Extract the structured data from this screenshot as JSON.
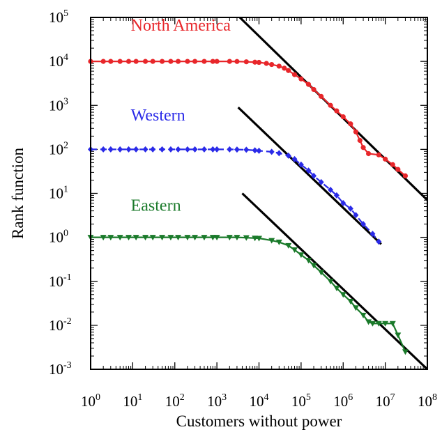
{
  "chart_data": {
    "type": "line",
    "xlabel": "Customers without power",
    "ylabel": "Rank function",
    "x_scale": "log",
    "y_scale": "log",
    "xlim": [
      1,
      100000000
    ],
    "ylim": [
      0.001,
      100000
    ],
    "x_ticks": [
      {
        "base": "10",
        "exp": "0",
        "value": 1
      },
      {
        "base": "10",
        "exp": "1",
        "value": 10
      },
      {
        "base": "10",
        "exp": "2",
        "value": 100
      },
      {
        "base": "10",
        "exp": "3",
        "value": 1000
      },
      {
        "base": "10",
        "exp": "4",
        "value": 10000
      },
      {
        "base": "10",
        "exp": "5",
        "value": 100000
      },
      {
        "base": "10",
        "exp": "6",
        "value": 1000000
      },
      {
        "base": "10",
        "exp": "7",
        "value": 10000000
      },
      {
        "base": "10",
        "exp": "8",
        "value": 100000000
      }
    ],
    "y_ticks": [
      {
        "base": "10",
        "exp": "-3",
        "value": 0.001
      },
      {
        "base": "10",
        "exp": "-2",
        "value": 0.01
      },
      {
        "base": "10",
        "exp": "-1",
        "value": 0.1
      },
      {
        "base": "10",
        "exp": "0",
        "value": 1
      },
      {
        "base": "10",
        "exp": "1",
        "value": 10
      },
      {
        "base": "10",
        "exp": "2",
        "value": 100
      },
      {
        "base": "10",
        "exp": "3",
        "value": 1000
      },
      {
        "base": "10",
        "exp": "4",
        "value": 10000
      },
      {
        "base": "10",
        "exp": "5",
        "value": 100000
      }
    ],
    "series": [
      {
        "name": "North America",
        "color": "#e8262a",
        "marker": "circle",
        "line_style": "solid",
        "x": [
          1,
          2,
          3,
          5,
          8,
          12,
          20,
          30,
          50,
          80,
          120,
          200,
          300,
          500,
          800,
          1000,
          2000,
          3000,
          5000,
          8000,
          10000,
          15000,
          20000,
          30000,
          40000,
          50000,
          70000,
          100000,
          150000,
          200000,
          300000,
          500000,
          700000,
          1000000,
          1500000,
          2000000,
          2500000,
          3000000,
          4000000,
          7000000,
          10000000,
          15000000,
          20000000,
          30000000
        ],
        "y": [
          10000,
          10000,
          10000,
          10000,
          10000,
          10000,
          10000,
          10000,
          10000,
          10000,
          10000,
          10000,
          10000,
          10000,
          10000,
          10000,
          10000,
          9950,
          9800,
          9600,
          9500,
          9000,
          8500,
          7800,
          7000,
          6200,
          5000,
          4000,
          3000,
          2300,
          1600,
          1000,
          750,
          550,
          380,
          250,
          160,
          110,
          80,
          75,
          60,
          45,
          35,
          25
        ]
      },
      {
        "name": "Western",
        "color": "#2a2ae8",
        "marker": "diamond",
        "line_style": "dashed",
        "x": [
          1,
          2,
          3,
          5,
          8,
          12,
          20,
          30,
          50,
          80,
          120,
          200,
          300,
          500,
          800,
          1000,
          2000,
          3000,
          5000,
          8000,
          10000,
          20000,
          30000,
          50000,
          70000,
          100000,
          150000,
          200000,
          300000,
          500000,
          700000,
          1000000,
          1500000,
          2000000,
          3000000,
          5000000,
          7000000
        ],
        "y": [
          100,
          100,
          100,
          100,
          100,
          100,
          100,
          100,
          100,
          100,
          100,
          100,
          100,
          100,
          100,
          100,
          100,
          99,
          98,
          95,
          93,
          88,
          82,
          72,
          60,
          45,
          33,
          25,
          18,
          12,
          9,
          6,
          4.5,
          3.2,
          2,
          1.2,
          0.8
        ]
      },
      {
        "name": "Eastern",
        "color": "#1a7a2a",
        "marker": "triangle-down",
        "line_style": "solid",
        "x": [
          1,
          2,
          3,
          5,
          8,
          12,
          20,
          30,
          50,
          80,
          120,
          200,
          300,
          500,
          800,
          1000,
          2000,
          3000,
          5000,
          8000,
          10000,
          20000,
          30000,
          50000,
          70000,
          100000,
          150000,
          200000,
          300000,
          500000,
          700000,
          1000000,
          1500000,
          2000000,
          3000000,
          4000000,
          5000000,
          7000000,
          10000000,
          15000000,
          20000000,
          30000000
        ],
        "y": [
          1,
          1,
          1,
          1,
          1,
          1,
          1,
          1,
          1,
          1,
          1,
          1,
          1,
          1,
          1,
          1,
          1,
          1,
          0.98,
          0.96,
          0.95,
          0.85,
          0.78,
          0.65,
          0.52,
          0.4,
          0.3,
          0.23,
          0.16,
          0.1,
          0.07,
          0.05,
          0.035,
          0.025,
          0.017,
          0.012,
          0.011,
          0.011,
          0.011,
          0.011,
          0.006,
          0.0025
        ]
      }
    ],
    "fit_lines": [
      {
        "color": "#000000",
        "x": [
          3500,
          100000000
        ],
        "y": [
          100000,
          7
        ]
      },
      {
        "color": "#000000",
        "x": [
          3200,
          8000000
        ],
        "y": [
          900,
          0.7
        ]
      },
      {
        "color": "#000000",
        "x": [
          4000,
          100000000
        ],
        "y": [
          10,
          0.001
        ]
      }
    ],
    "series_labels": [
      {
        "text": "North America",
        "color": "#e8262a",
        "x": 9,
        "y": 50000
      },
      {
        "text": "Western",
        "color": "#2a2ae8",
        "x": 9,
        "y": 450
      },
      {
        "text": "Eastern",
        "color": "#1a7a2a",
        "x": 9,
        "y": 4
      }
    ]
  }
}
